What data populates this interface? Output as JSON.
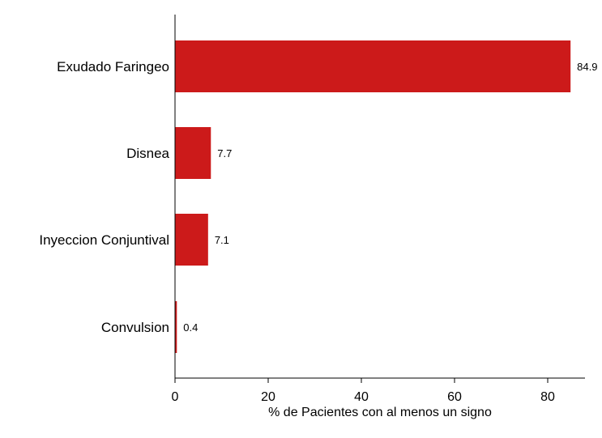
{
  "chart_data": {
    "type": "bar",
    "orientation": "horizontal",
    "categories": [
      "Exudado Faringeo",
      "Disnea",
      "Inyeccion Conjuntival",
      "Convulsion"
    ],
    "values": [
      84.9,
      7.7,
      7.1,
      0.4
    ],
    "value_labels": [
      "84.9",
      "7.7",
      "7.1",
      "0.4"
    ],
    "title": "",
    "xlabel": "% de Pacientes con al menos un signo",
    "ylabel": "",
    "xlim": [
      0,
      88
    ],
    "xticks": [
      0,
      20,
      40,
      60,
      80
    ],
    "bar_color": "#cc1a1a",
    "grid": false,
    "legend": "none"
  }
}
